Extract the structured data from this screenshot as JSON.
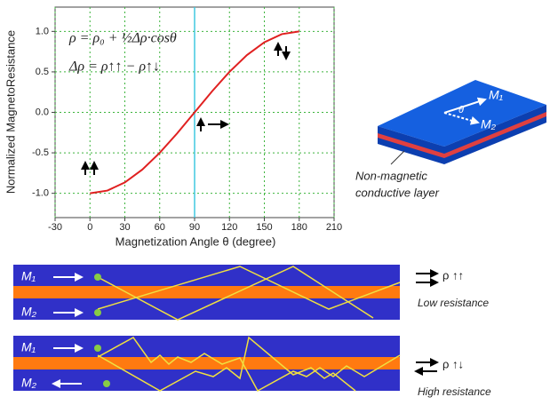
{
  "chart_data": {
    "type": "line",
    "x": [
      0,
      15,
      30,
      45,
      60,
      75,
      90,
      105,
      120,
      135,
      150,
      165,
      180
    ],
    "series": [
      {
        "color": "#e02020",
        "values": [
          -1,
          -0.966,
          -0.866,
          -0.707,
          -0.5,
          -0.259,
          0,
          0.259,
          0.5,
          0.707,
          0.866,
          0.966,
          1
        ]
      }
    ],
    "xlim": [
      -30,
      210
    ],
    "xticks": [
      -30,
      0,
      30,
      60,
      90,
      120,
      150,
      180,
      210
    ],
    "ylim": [
      -1.3,
      1.3
    ],
    "yticks": [
      {
        "value": -1,
        "label": "-1.0"
      },
      {
        "value": -0.5,
        "label": "-0.5"
      },
      {
        "value": 0,
        "label": "0.0"
      },
      {
        "value": 0.5,
        "label": "0.5"
      },
      {
        "value": 1,
        "label": "1.0"
      }
    ],
    "grid": true,
    "grid_color": "#3cb43c",
    "marker_x": 90,
    "xlabel": "Magnetization Angle  θ  (degree)",
    "ylabel": "Normalized  MagnetoResistance",
    "annotations": [
      "ρ = ρ₀ + ½Δρ·cosθ",
      "Δρ = ρ↑↑ − ρ↑↓"
    ]
  },
  "diagram": {
    "m1": "M₁",
    "m2": "M₂",
    "angle": "θ",
    "layer_label": [
      "Non-magnetic",
      "conductive layer"
    ],
    "parallel": {
      "m1": "M₁",
      "m2": "M₂",
      "rho": "ρ ↑↑",
      "label": "Low resistance"
    },
    "antiparallel": {
      "m1": "M₁",
      "m2": "M₂",
      "rho": "ρ ↑↓",
      "label": "High resistance"
    }
  }
}
